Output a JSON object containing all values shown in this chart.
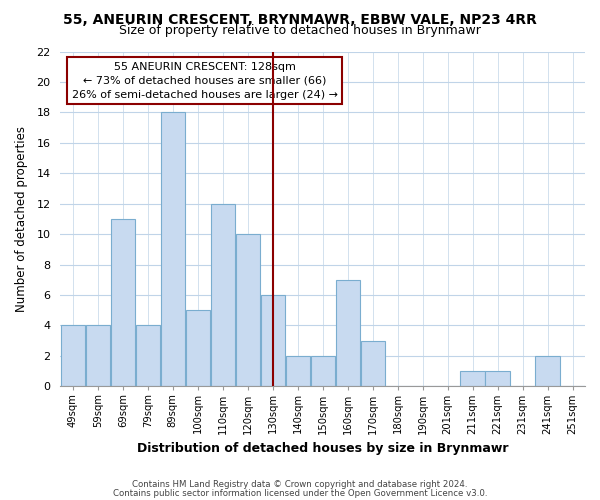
{
  "title": "55, ANEURIN CRESCENT, BRYNMAWR, EBBW VALE, NP23 4RR",
  "subtitle": "Size of property relative to detached houses in Brynmawr",
  "xlabel": "Distribution of detached houses by size in Brynmawr",
  "ylabel": "Number of detached properties",
  "bar_labels": [
    "49sqm",
    "59sqm",
    "69sqm",
    "79sqm",
    "89sqm",
    "100sqm",
    "110sqm",
    "120sqm",
    "130sqm",
    "140sqm",
    "150sqm",
    "160sqm",
    "170sqm",
    "180sqm",
    "190sqm",
    "201sqm",
    "211sqm",
    "221sqm",
    "231sqm",
    "241sqm",
    "251sqm"
  ],
  "bar_values": [
    4,
    4,
    11,
    4,
    18,
    5,
    12,
    10,
    6,
    2,
    2,
    7,
    3,
    0,
    0,
    0,
    1,
    1,
    0,
    2,
    0
  ],
  "bar_color": "#c8daf0",
  "bar_edge_color": "#7aadcf",
  "grid_color": "#c0d4e8",
  "property_line_color": "#8b0000",
  "annotation_title": "55 ANEURIN CRESCENT: 128sqm",
  "annotation_line1": "← 73% of detached houses are smaller (66)",
  "annotation_line2": "26% of semi-detached houses are larger (24) →",
  "annotation_box_color": "#ffffff",
  "annotation_box_edge": "#8b0000",
  "ylim": [
    0,
    22
  ],
  "yticks": [
    0,
    2,
    4,
    6,
    8,
    10,
    12,
    14,
    16,
    18,
    20,
    22
  ],
  "footnote1": "Contains HM Land Registry data © Crown copyright and database right 2024.",
  "footnote2": "Contains public sector information licensed under the Open Government Licence v3.0."
}
